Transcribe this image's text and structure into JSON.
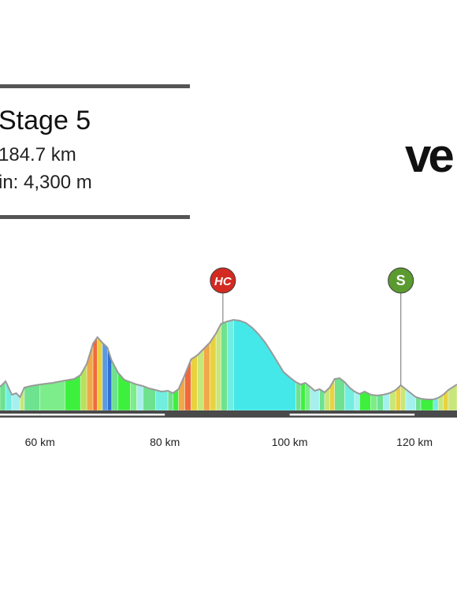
{
  "header": {
    "stage": "Stage 5",
    "distance": "184.7 km",
    "elevation_gain": "in: 4,300 m"
  },
  "logo_text": "ve",
  "chart_data": {
    "type": "area",
    "title": "",
    "xlabel": "",
    "ylabel": "",
    "x_unit": "km",
    "xlim": [
      53.6,
      126.8
    ],
    "x_ticks": [
      {
        "value": 60,
        "label": "60 km"
      },
      {
        "value": 80,
        "label": "80 km"
      },
      {
        "value": 100,
        "label": "100 km"
      },
      {
        "value": 120,
        "label": "120 km"
      }
    ],
    "y_unit": "relative elevation (0 = baseline)",
    "profile": [
      [
        53.6,
        30
      ],
      [
        54.5,
        37
      ],
      [
        55.5,
        20
      ],
      [
        56.2,
        22
      ],
      [
        56.8,
        17
      ],
      [
        57.5,
        29
      ],
      [
        58.5,
        31
      ],
      [
        60,
        33
      ],
      [
        62,
        35
      ],
      [
        64,
        38
      ],
      [
        65.5,
        40
      ],
      [
        66.5,
        45
      ],
      [
        67.5,
        59
      ],
      [
        68.5,
        85
      ],
      [
        69.2,
        93
      ],
      [
        70,
        86
      ],
      [
        70.8,
        80
      ],
      [
        71.5,
        63
      ],
      [
        72.5,
        48
      ],
      [
        73.5,
        39
      ],
      [
        74.5,
        36
      ],
      [
        75.5,
        33
      ],
      [
        76.5,
        31
      ],
      [
        77.5,
        28
      ],
      [
        78.5,
        26
      ],
      [
        79.5,
        24
      ],
      [
        80.5,
        25
      ],
      [
        81.3,
        22
      ],
      [
        82.2,
        27
      ],
      [
        83.2,
        45
      ],
      [
        84.2,
        65
      ],
      [
        85.2,
        70
      ],
      [
        86.2,
        78
      ],
      [
        87.2,
        86
      ],
      [
        88.2,
        98
      ],
      [
        89,
        110
      ],
      [
        90,
        113
      ],
      [
        91,
        115
      ],
      [
        92,
        114
      ],
      [
        93,
        111
      ],
      [
        94,
        105
      ],
      [
        95,
        97
      ],
      [
        96,
        87
      ],
      [
        97,
        75
      ],
      [
        98,
        62
      ],
      [
        99,
        49
      ],
      [
        100,
        42
      ],
      [
        101,
        36
      ],
      [
        101.8,
        33
      ],
      [
        102.5,
        35
      ],
      [
        103.3,
        30
      ],
      [
        104,
        25
      ],
      [
        104.8,
        27
      ],
      [
        105.6,
        23
      ],
      [
        106.4,
        29
      ],
      [
        107.2,
        40
      ],
      [
        108,
        41
      ],
      [
        108.8,
        36
      ],
      [
        109.6,
        29
      ],
      [
        110.4,
        24
      ],
      [
        111.2,
        21
      ],
      [
        112,
        24
      ],
      [
        113,
        20
      ],
      [
        114,
        19
      ],
      [
        115,
        20
      ],
      [
        116,
        22
      ],
      [
        117,
        26
      ],
      [
        117.8,
        32
      ],
      [
        118.6,
        27
      ],
      [
        119.4,
        22
      ],
      [
        120.2,
        17
      ],
      [
        121,
        15
      ],
      [
        122,
        14
      ],
      [
        123,
        14
      ],
      [
        123.8,
        16
      ],
      [
        124.6,
        20
      ],
      [
        125.4,
        26
      ],
      [
        126.2,
        30
      ],
      [
        126.8,
        33
      ]
    ],
    "gradient_bands": [
      {
        "from": 53.6,
        "to": 54.5,
        "color": "#6ee28f"
      },
      {
        "from": 54.5,
        "to": 55.5,
        "color": "#72eee0"
      },
      {
        "from": 55.5,
        "to": 56.8,
        "color": "#a5f0ee"
      },
      {
        "from": 56.8,
        "to": 57.5,
        "color": "#c8e67a"
      },
      {
        "from": 57.5,
        "to": 60,
        "color": "#6ee28f"
      },
      {
        "from": 60,
        "to": 64,
        "color": "#7ced8a"
      },
      {
        "from": 64,
        "to": 66.5,
        "color": "#3df03d"
      },
      {
        "from": 66.5,
        "to": 67.5,
        "color": "#b8e15a"
      },
      {
        "from": 67.5,
        "to": 68.5,
        "color": "#f0a848"
      },
      {
        "from": 68.5,
        "to": 69.2,
        "color": "#ef6a3a"
      },
      {
        "from": 69.2,
        "to": 70,
        "color": "#e8d240"
      },
      {
        "from": 70,
        "to": 70.8,
        "color": "#5a9ae4"
      },
      {
        "from": 70.8,
        "to": 71.5,
        "color": "#2f6fd0"
      },
      {
        "from": 71.5,
        "to": 72.5,
        "color": "#6ee28f"
      },
      {
        "from": 72.5,
        "to": 74.5,
        "color": "#3df03d"
      },
      {
        "from": 74.5,
        "to": 75.5,
        "color": "#7ced8a"
      },
      {
        "from": 75.5,
        "to": 76.5,
        "color": "#a5f0ee"
      },
      {
        "from": 76.5,
        "to": 78.5,
        "color": "#6ee28f"
      },
      {
        "from": 78.5,
        "to": 80.5,
        "color": "#72eee0"
      },
      {
        "from": 80.5,
        "to": 81.3,
        "color": "#6ee28f"
      },
      {
        "from": 81.3,
        "to": 82.2,
        "color": "#3df03d"
      },
      {
        "from": 82.2,
        "to": 83.2,
        "color": "#f0a848"
      },
      {
        "from": 83.2,
        "to": 84.2,
        "color": "#ef6a3a"
      },
      {
        "from": 84.2,
        "to": 85.2,
        "color": "#e8d240"
      },
      {
        "from": 85.2,
        "to": 86.2,
        "color": "#c8e67a"
      },
      {
        "from": 86.2,
        "to": 87.2,
        "color": "#f0a848"
      },
      {
        "from": 87.2,
        "to": 88.2,
        "color": "#e8d240"
      },
      {
        "from": 88.2,
        "to": 89,
        "color": "#c8e67a"
      },
      {
        "from": 89,
        "to": 90,
        "color": "#6ee28f"
      },
      {
        "from": 90,
        "to": 91,
        "color": "#72eee0"
      },
      {
        "from": 91,
        "to": 101,
        "color": "#45e8e8"
      },
      {
        "from": 101,
        "to": 101.8,
        "color": "#6ee28f"
      },
      {
        "from": 101.8,
        "to": 102.5,
        "color": "#3df03d"
      },
      {
        "from": 102.5,
        "to": 103.3,
        "color": "#7ced8a"
      },
      {
        "from": 103.3,
        "to": 104.8,
        "color": "#a5f0ee"
      },
      {
        "from": 104.8,
        "to": 105.6,
        "color": "#6ee28f"
      },
      {
        "from": 105.6,
        "to": 106.4,
        "color": "#c8e67a"
      },
      {
        "from": 106.4,
        "to": 107.2,
        "color": "#e8d240"
      },
      {
        "from": 107.2,
        "to": 108.8,
        "color": "#6ee28f"
      },
      {
        "from": 108.8,
        "to": 110.4,
        "color": "#72eee0"
      },
      {
        "from": 110.4,
        "to": 111.2,
        "color": "#a5f0ee"
      },
      {
        "from": 111.2,
        "to": 113,
        "color": "#3df03d"
      },
      {
        "from": 113,
        "to": 114,
        "color": "#7ced8a"
      },
      {
        "from": 114,
        "to": 115,
        "color": "#6ee28f"
      },
      {
        "from": 115,
        "to": 116,
        "color": "#a5f0ee"
      },
      {
        "from": 116,
        "to": 117,
        "color": "#c8e67a"
      },
      {
        "from": 117,
        "to": 117.8,
        "color": "#e8d240"
      },
      {
        "from": 117.8,
        "to": 118.6,
        "color": "#c8e67a"
      },
      {
        "from": 118.6,
        "to": 120.2,
        "color": "#a5f0ee"
      },
      {
        "from": 120.2,
        "to": 121,
        "color": "#6ee28f"
      },
      {
        "from": 121,
        "to": 123,
        "color": "#3df03d"
      },
      {
        "from": 123,
        "to": 123.8,
        "color": "#72eee0"
      },
      {
        "from": 123.8,
        "to": 124.6,
        "color": "#c8e67a"
      },
      {
        "from": 124.6,
        "to": 125.4,
        "color": "#e8d240"
      },
      {
        "from": 125.4,
        "to": 126.8,
        "color": "#c8e67a"
      }
    ],
    "markers": [
      {
        "label": "HC",
        "km": 89.3,
        "type": "climb-category",
        "color": "#d32a21"
      },
      {
        "label": "S",
        "km": 117.8,
        "type": "sprint",
        "color": "#5b9a2f"
      }
    ],
    "distance_bar_color": "#4a4a4a",
    "profile_outline_color": "#9a9a9a",
    "grid": false,
    "legend": "none"
  }
}
